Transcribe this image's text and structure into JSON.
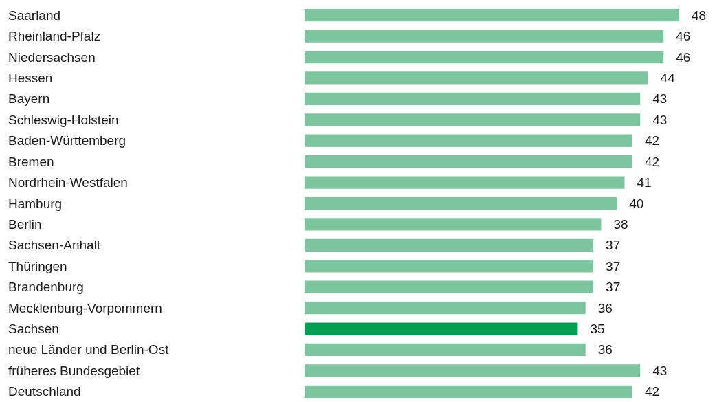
{
  "chart_data": {
    "type": "bar",
    "orientation": "horizontal",
    "data_labels": true,
    "categories": [
      "Saarland",
      "Rheinland-Pfalz",
      "Niedersachsen",
      "Hessen",
      "Bayern",
      "Schleswig-Holstein",
      "Baden-Württemberg",
      "Bremen",
      "Nordrhein-Westfalen",
      "Hamburg",
      "Berlin",
      "Sachsen-Anhalt",
      "Thüringen",
      "Brandenburg",
      "Mecklenburg-Vorpommern",
      "Sachsen",
      "neue Länder und Berlin-Ost",
      "früheres Bundesgebiet",
      "Deutschland"
    ],
    "values": [
      48,
      46,
      46,
      44,
      43,
      43,
      42,
      42,
      41,
      40,
      38,
      37,
      37,
      37,
      36,
      35,
      36,
      43,
      42
    ],
    "colors": [
      "#7dc59e",
      "#7dc59e",
      "#7dc59e",
      "#7dc59e",
      "#7dc59e",
      "#7dc59e",
      "#7dc59e",
      "#7dc59e",
      "#7dc59e",
      "#7dc59e",
      "#7dc59e",
      "#7dc59e",
      "#7dc59e",
      "#7dc59e",
      "#7dc59e",
      "#00a053",
      "#7dc59e",
      "#7dc59e",
      "#7dc59e"
    ]
  }
}
